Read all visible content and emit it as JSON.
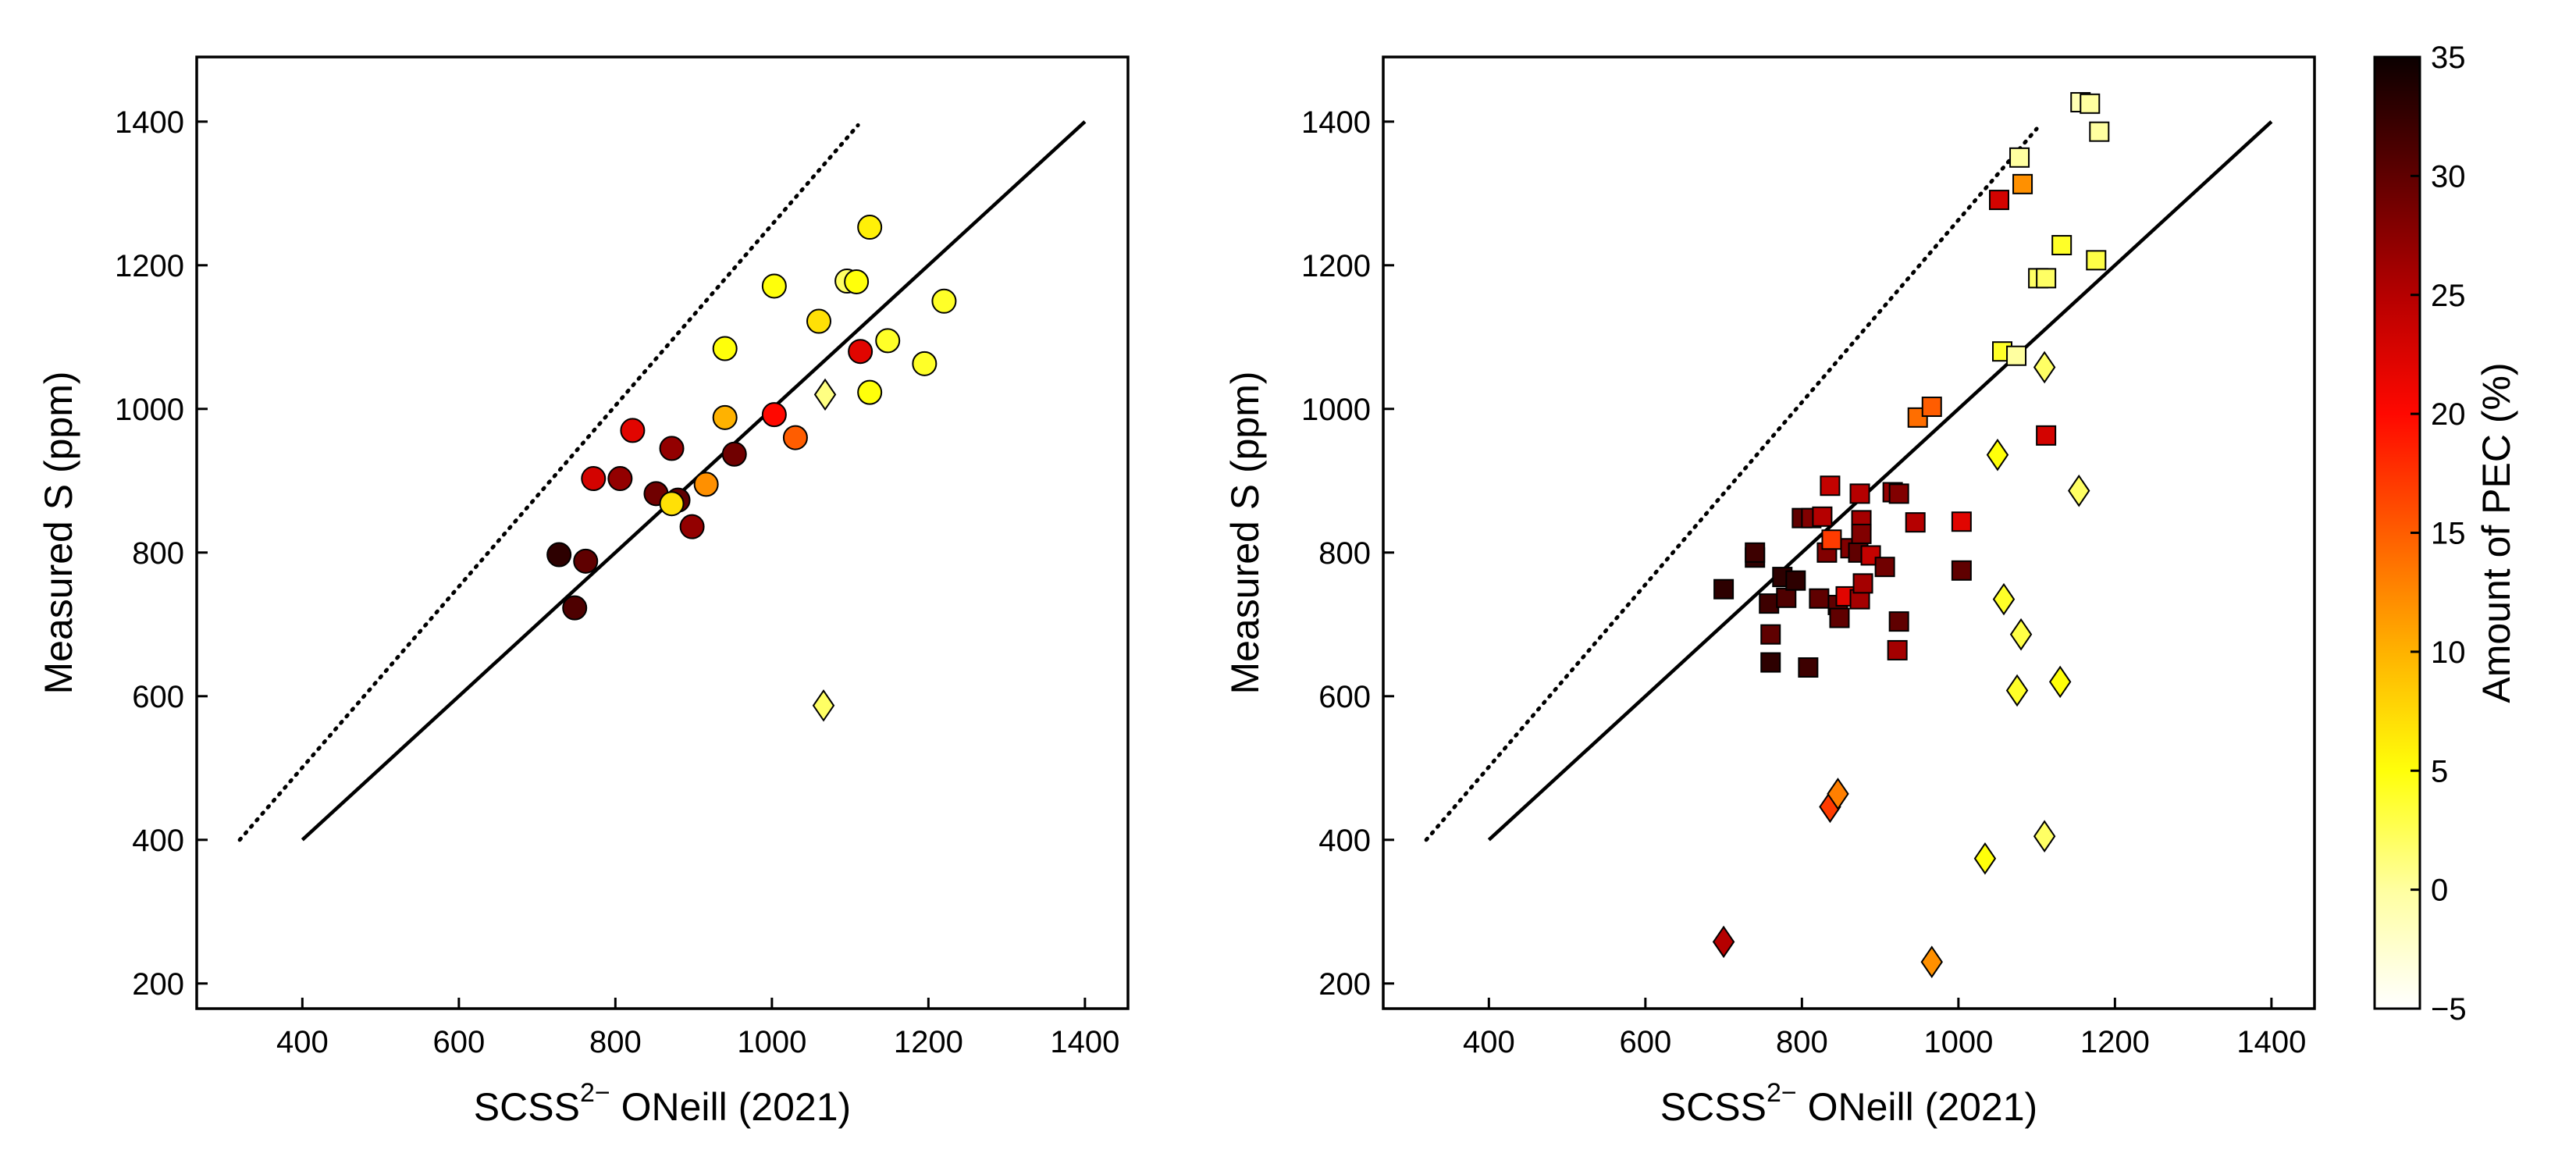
{
  "chart_data": [
    {
      "type": "scatter",
      "xlabel_main": "SCSS",
      "xlabel_sup": "2−",
      "xlabel_rest": " ONeill (2021)",
      "ylabel": "Measured S (ppm)",
      "xlim": [
        265,
        1455
      ],
      "ylim": [
        165,
        1490
      ],
      "x_ticks": [
        400,
        600,
        800,
        1000,
        1200,
        1400
      ],
      "y_ticks": [
        200,
        400,
        600,
        800,
        1000,
        1200,
        1400
      ],
      "lines": [
        {
          "style": "solid",
          "points": [
            [
              400,
              400
            ],
            [
              1400,
              1400
            ]
          ]
        },
        {
          "style": "dotted",
          "points": [
            [
              320,
              400
            ],
            [
              1110,
              1395
            ]
          ]
        }
      ],
      "series": [
        {
          "marker": "circle",
          "points": [
            [
              728,
              797,
              33
            ],
            [
              762,
              788,
              30
            ],
            [
              748,
              723,
              31
            ],
            [
              772,
              903,
              23
            ],
            [
              806,
              903,
              27
            ],
            [
              822,
              970,
              22
            ],
            [
              852,
              882,
              29
            ],
            [
              872,
              945,
              27
            ],
            [
              880,
              873,
              30
            ],
            [
              872,
              868,
              7
            ],
            [
              898,
              836,
              27
            ],
            [
              916,
              895,
              12
            ],
            [
              952,
              937,
              29
            ],
            [
              940,
              1084,
              5
            ],
            [
              940,
              988,
              10
            ],
            [
              1003,
              992,
              20
            ],
            [
              1030,
              960,
              15
            ],
            [
              1003,
              1171,
              5
            ],
            [
              1060,
              1122,
              7
            ],
            [
              1096,
              1178,
              2
            ],
            [
              1108,
              1177,
              5
            ],
            [
              1113,
              1080,
              22
            ],
            [
              1125,
              1253,
              6
            ],
            [
              1125,
              1023,
              5
            ],
            [
              1148,
              1095,
              4
            ],
            [
              1195,
              1063,
              4
            ],
            [
              1220,
              1150,
              4
            ]
          ]
        },
        {
          "marker": "diamond",
          "points": [
            [
              1068,
              1020,
              1
            ],
            [
              1066,
              587,
              2
            ]
          ]
        }
      ]
    },
    {
      "type": "scatter",
      "xlabel_main": "SCSS",
      "xlabel_sup": "2−",
      "xlabel_rest": " ONeill (2021)",
      "ylabel": "Measured S (ppm)",
      "xlim": [
        265,
        1455
      ],
      "ylim": [
        165,
        1490
      ],
      "x_ticks": [
        400,
        600,
        800,
        1000,
        1200,
        1400
      ],
      "y_ticks": [
        200,
        400,
        600,
        800,
        1000,
        1200,
        1400
      ],
      "lines": [
        {
          "style": "solid",
          "points": [
            [
              400,
              400
            ],
            [
              1400,
              1400
            ]
          ]
        },
        {
          "style": "dotted",
          "points": [
            [
              320,
              400
            ],
            [
              1100,
              1390
            ]
          ]
        }
      ],
      "series": [
        {
          "marker": "square",
          "points": [
            [
              700,
              749,
              33
            ],
            [
              740,
              793,
              33
            ],
            [
              740,
              800,
              32
            ],
            [
              758,
              729,
              32
            ],
            [
              760,
              686,
              30
            ],
            [
              760,
              647,
              33
            ],
            [
              775,
              766,
              33
            ],
            [
              780,
              737,
              31
            ],
            [
              792,
              761,
              33
            ],
            [
              800,
              848,
              30
            ],
            [
              808,
              640,
              32
            ],
            [
              812,
              848,
              28
            ],
            [
              822,
              736,
              30
            ],
            [
              826,
              850,
              25
            ],
            [
              832,
              800,
              28
            ],
            [
              836,
              893,
              24
            ],
            [
              838,
              818,
              17
            ],
            [
              846,
              727,
              30
            ],
            [
              848,
              709,
              30
            ],
            [
              856,
              739,
              22
            ],
            [
              862,
              806,
              28
            ],
            [
              872,
              800,
              30
            ],
            [
              874,
              735,
              26
            ],
            [
              874,
              882,
              25
            ],
            [
              876,
              845,
              26
            ],
            [
              876,
              826,
              28
            ],
            [
              878,
              757,
              26
            ],
            [
              888,
              796,
              24
            ],
            [
              906,
              780,
              29
            ],
            [
              916,
              884,
              27
            ],
            [
              924,
              882,
              28
            ],
            [
              922,
              664,
              26
            ],
            [
              924,
              704,
              30
            ],
            [
              945,
              842,
              25
            ],
            [
              948,
              988,
              14
            ],
            [
              966,
              1003,
              15
            ],
            [
              1004,
              775,
              30
            ],
            [
              1004,
              843,
              22
            ],
            [
              1052,
              1291,
              23
            ],
            [
              1056,
              1080,
              4
            ],
            [
              1074,
              1074,
              0
            ],
            [
              1078,
              1350,
              0
            ],
            [
              1082,
              1313,
              12
            ],
            [
              1102,
              1182,
              2
            ],
            [
              1112,
              1182,
              2
            ],
            [
              1112,
              963,
              23
            ],
            [
              1132,
              1228,
              4
            ],
            [
              1156,
              1427,
              -1
            ],
            [
              1168,
              1425,
              0
            ],
            [
              1176,
              1207,
              3
            ],
            [
              1180,
              1386,
              0
            ]
          ]
        },
        {
          "marker": "diamond",
          "points": [
            [
              700,
              258,
              25
            ],
            [
              836,
              446,
              17
            ],
            [
              846,
              464,
              13
            ],
            [
              966,
              230,
              12
            ],
            [
              1034,
              374,
              5
            ],
            [
              1050,
              936,
              5
            ],
            [
              1058,
              735,
              4
            ],
            [
              1075,
              608,
              4
            ],
            [
              1080,
              686,
              3
            ],
            [
              1110,
              1058,
              2
            ],
            [
              1110,
              405,
              2
            ],
            [
              1130,
              620,
              5
            ],
            [
              1154,
              886,
              2
            ]
          ]
        }
      ]
    }
  ],
  "colorbar": {
    "label": "Amount of PEC (%)",
    "min": -5,
    "max": 35,
    "ticks": [
      -5,
      0,
      5,
      10,
      15,
      20,
      25,
      30,
      35
    ],
    "tick_labels": [
      "−5",
      "0",
      "5",
      "10",
      "15",
      "20",
      "25",
      "30",
      "35"
    ],
    "colormap": "hot_r",
    "stops": [
      "#ffffff",
      "#ffffa0",
      "#ffff0a",
      "#ffb200",
      "#ff5d00",
      "#ff0800",
      "#b50000",
      "#5f0000",
      "#0b0000"
    ]
  }
}
